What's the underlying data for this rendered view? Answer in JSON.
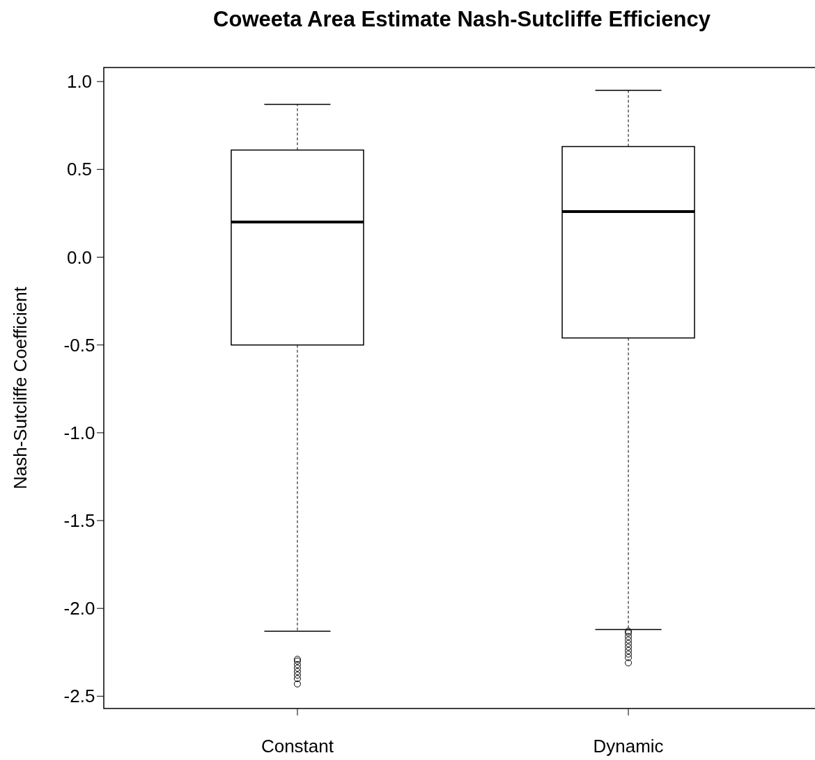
{
  "chart_data": {
    "type": "box",
    "title": "Coweeta Area Estimate Nash-Sutcliffe Efficiency",
    "ylabel": "Nash-Sutcliffe Coefficient",
    "categories": [
      "Constant",
      "Dynamic"
    ],
    "boxes": [
      {
        "low": -2.13,
        "q1": -0.5,
        "median": 0.2,
        "q3": 0.61,
        "high": 0.87,
        "outliers": [
          -2.29,
          -2.3,
          -2.32,
          -2.34,
          -2.36,
          -2.38,
          -2.4,
          -2.43
        ]
      },
      {
        "low": -2.12,
        "q1": -0.46,
        "median": 0.26,
        "q3": 0.63,
        "high": 0.95,
        "outliers": [
          -2.13,
          -2.14,
          -2.16,
          -2.18,
          -2.2,
          -2.22,
          -2.24,
          -2.26,
          -2.28,
          -2.31
        ]
      }
    ],
    "ylim": [
      -2.57,
      1.08
    ],
    "yticks": [
      {
        "value": 1,
        "label": "1.0"
      },
      {
        "value": 0.5,
        "label": "0.5"
      },
      {
        "value": 0,
        "label": "0.0"
      },
      {
        "value": -0.5,
        "label": "-0.5"
      },
      {
        "value": -1,
        "label": "-1.0"
      },
      {
        "value": -1.5,
        "label": "-1.5"
      },
      {
        "value": -2,
        "label": "-2.0"
      },
      {
        "value": -2.5,
        "label": "-2.5"
      }
    ],
    "grid": false
  }
}
